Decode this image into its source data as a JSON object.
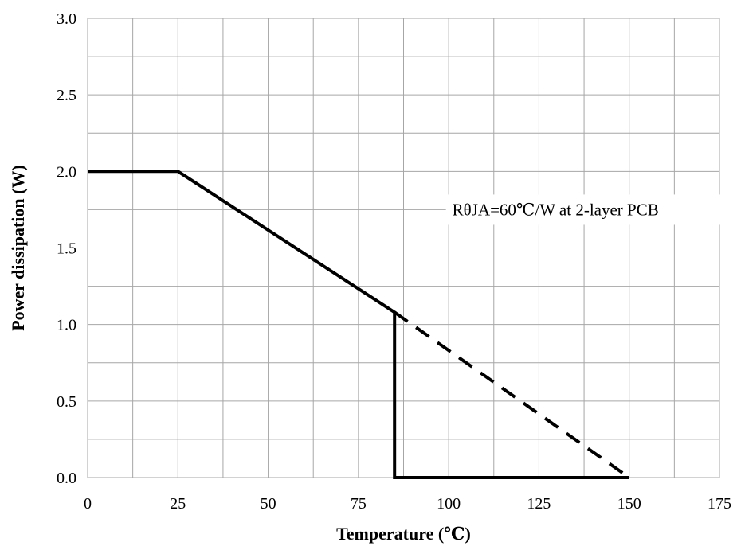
{
  "chart_data": {
    "type": "line",
    "title": "",
    "xlabel": "Temperature (℃)",
    "ylabel": "Power dissipation (W)",
    "xlim": [
      0,
      175
    ],
    "ylim": [
      0.0,
      3.0
    ],
    "x_ticks": [
      0,
      25,
      50,
      75,
      100,
      125,
      150,
      175
    ],
    "x_tick_labels": [
      "0",
      "25",
      "50",
      "75",
      "100",
      "125",
      "150",
      "175"
    ],
    "y_ticks": [
      0.0,
      0.5,
      1.0,
      1.5,
      2.0,
      2.5,
      3.0
    ],
    "y_tick_labels": [
      "0.0",
      "0.5",
      "1.0",
      "1.5",
      "2.0",
      "2.5",
      "3.0"
    ],
    "x_minor_step": 12.5,
    "y_minor_step": 0.25,
    "grid": true,
    "grid_color": "#a6a6a6",
    "line_color": "#000000",
    "series": [
      {
        "style": "solid",
        "x": [
          0,
          25,
          85,
          85,
          150
        ],
        "y": [
          2.0,
          2.0,
          1.08,
          0.0,
          0.0
        ]
      },
      {
        "style": "dashed",
        "x": [
          85,
          150
        ],
        "y": [
          1.08,
          0.0
        ]
      }
    ],
    "annotations": [
      {
        "text": "RθJA=60℃/W at 2-layer PCB",
        "x": 101,
        "y": 1.75
      }
    ]
  }
}
